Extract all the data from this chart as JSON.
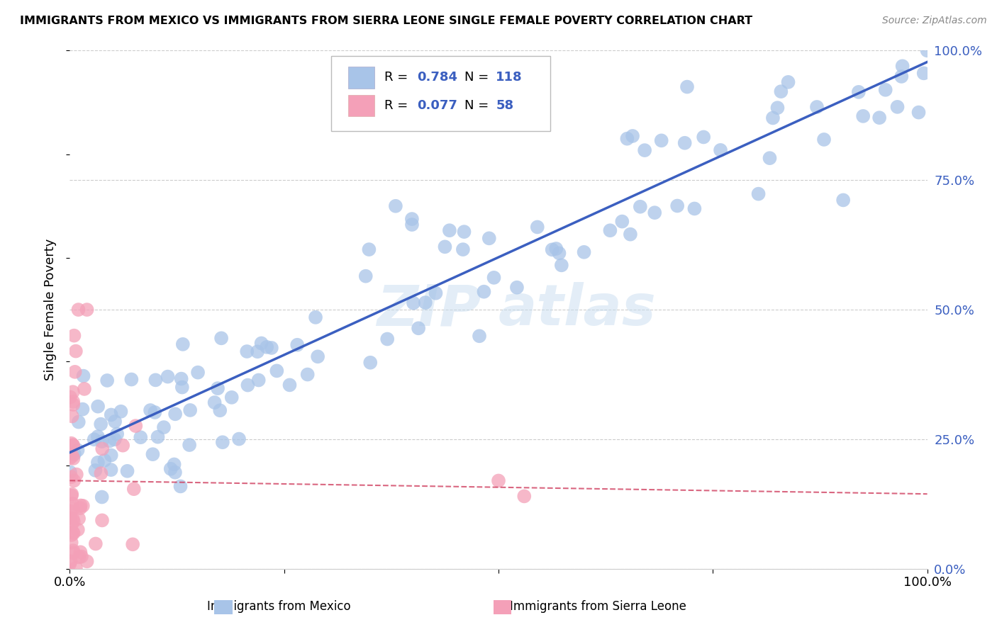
{
  "title": "IMMIGRANTS FROM MEXICO VS IMMIGRANTS FROM SIERRA LEONE SINGLE FEMALE POVERTY CORRELATION CHART",
  "source": "Source: ZipAtlas.com",
  "ylabel": "Single Female Poverty",
  "legend_label1": "Immigrants from Mexico",
  "legend_label2": "Immigrants from Sierra Leone",
  "color_mexico": "#a8c4e8",
  "color_mexico_line": "#3b5fc0",
  "color_sierra": "#f4a0b8",
  "color_sierra_line": "#d04060",
  "watermark1": "ZIP",
  "watermark2": "atlas",
  "ytick_labels": [
    "0.0%",
    "25.0%",
    "50.0%",
    "75.0%",
    "100.0%"
  ],
  "yticks": [
    0.0,
    0.25,
    0.5,
    0.75,
    1.0
  ],
  "background_color": "#ffffff",
  "grid_color": "#cccccc",
  "r1": "0.784",
  "n1": "118",
  "r2": "0.077",
  "n2": "58"
}
